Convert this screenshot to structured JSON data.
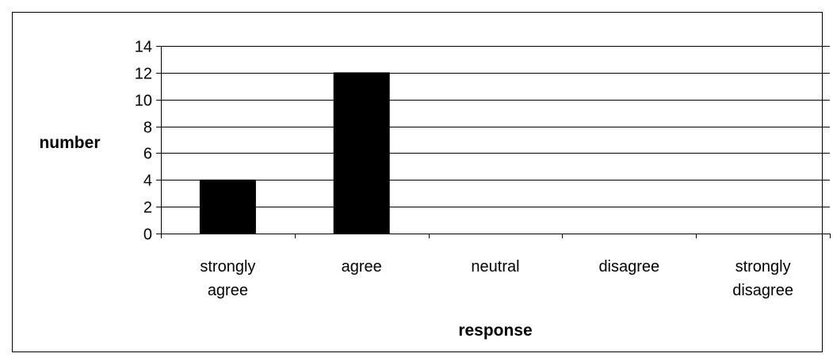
{
  "chart_data": {
    "type": "bar",
    "categories": [
      [
        "strongly",
        "agree"
      ],
      [
        "agree"
      ],
      [
        "neutral"
      ],
      [
        "disagree"
      ],
      [
        "strongly",
        "disagree"
      ]
    ],
    "values": [
      4,
      12,
      0,
      0,
      0
    ],
    "title": "",
    "xlabel": "response",
    "ylabel": "number",
    "ylim": [
      0,
      14
    ],
    "yticks": [
      0,
      2,
      4,
      6,
      8,
      10,
      12,
      14
    ],
    "grid": true,
    "legend": "none",
    "colors": {
      "bar": "#000000",
      "grid": "#000000",
      "background": "#ffffff"
    }
  }
}
